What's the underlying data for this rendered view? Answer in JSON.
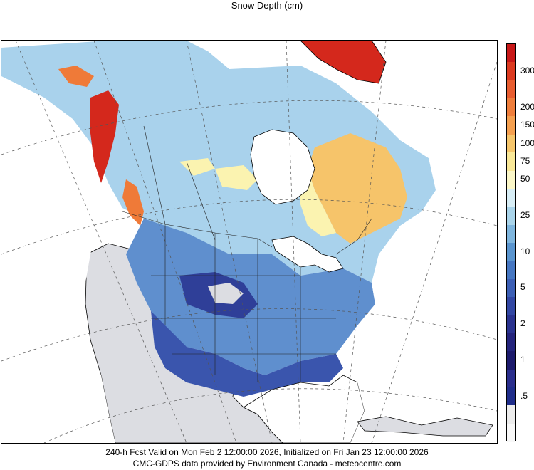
{
  "title": "Snow Depth (cm)",
  "footer": {
    "line1": "240-h Fcst Valid on Mon Feb  2 12:00:00 2026, Initialized on Fri Jan 23 12:00:00 2026",
    "line2": "CMC-GDPS data provided by Environment Canada - meteocentre.com"
  },
  "colorbar": [
    {
      "label": "",
      "color": "#c81818"
    },
    {
      "label": "300",
      "color": "#dc3a20"
    },
    {
      "label": "",
      "color": "#e85d30"
    },
    {
      "label": "200",
      "color": "#ef7e3c"
    },
    {
      "label": "150",
      "color": "#f5a050"
    },
    {
      "label": "100",
      "color": "#f6c66c"
    },
    {
      "label": "75",
      "color": "#f9e898"
    },
    {
      "label": "50",
      "color": "#fbf7c8"
    },
    {
      "label": "",
      "color": "#d8eef6"
    },
    {
      "label": "25",
      "color": "#a9d4ea"
    },
    {
      "label": "",
      "color": "#7fb6de"
    },
    {
      "label": "10",
      "color": "#5a95cf"
    },
    {
      "label": "",
      "color": "#4677c2"
    },
    {
      "label": "5",
      "color": "#3c5fb5"
    },
    {
      "label": "",
      "color": "#3247a3"
    },
    {
      "label": "2",
      "color": "#2a338f"
    },
    {
      "label": "",
      "color": "#24247c"
    },
    {
      "label": "1",
      "color": "#1c1a6c"
    },
    {
      "label": "",
      "color": "#2a2e8c"
    },
    {
      "label": ".5",
      "color": "#1f2d8a"
    },
    {
      "label": "",
      "color": "#ececec"
    },
    {
      "label": "",
      "color": "#f8f8f8"
    }
  ],
  "map_colors": {
    "no_snow": "#dcdde2",
    "trace": "#3547a8",
    "light": "#4f7cc8",
    "moderate": "#7fb0dc",
    "medium": "#a9d2ec",
    "deep": "#fbf3b0",
    "deeper": "#f6c46a",
    "very_deep": "#ef7a38",
    "extreme": "#d4281c",
    "water": "#ffffff"
  }
}
